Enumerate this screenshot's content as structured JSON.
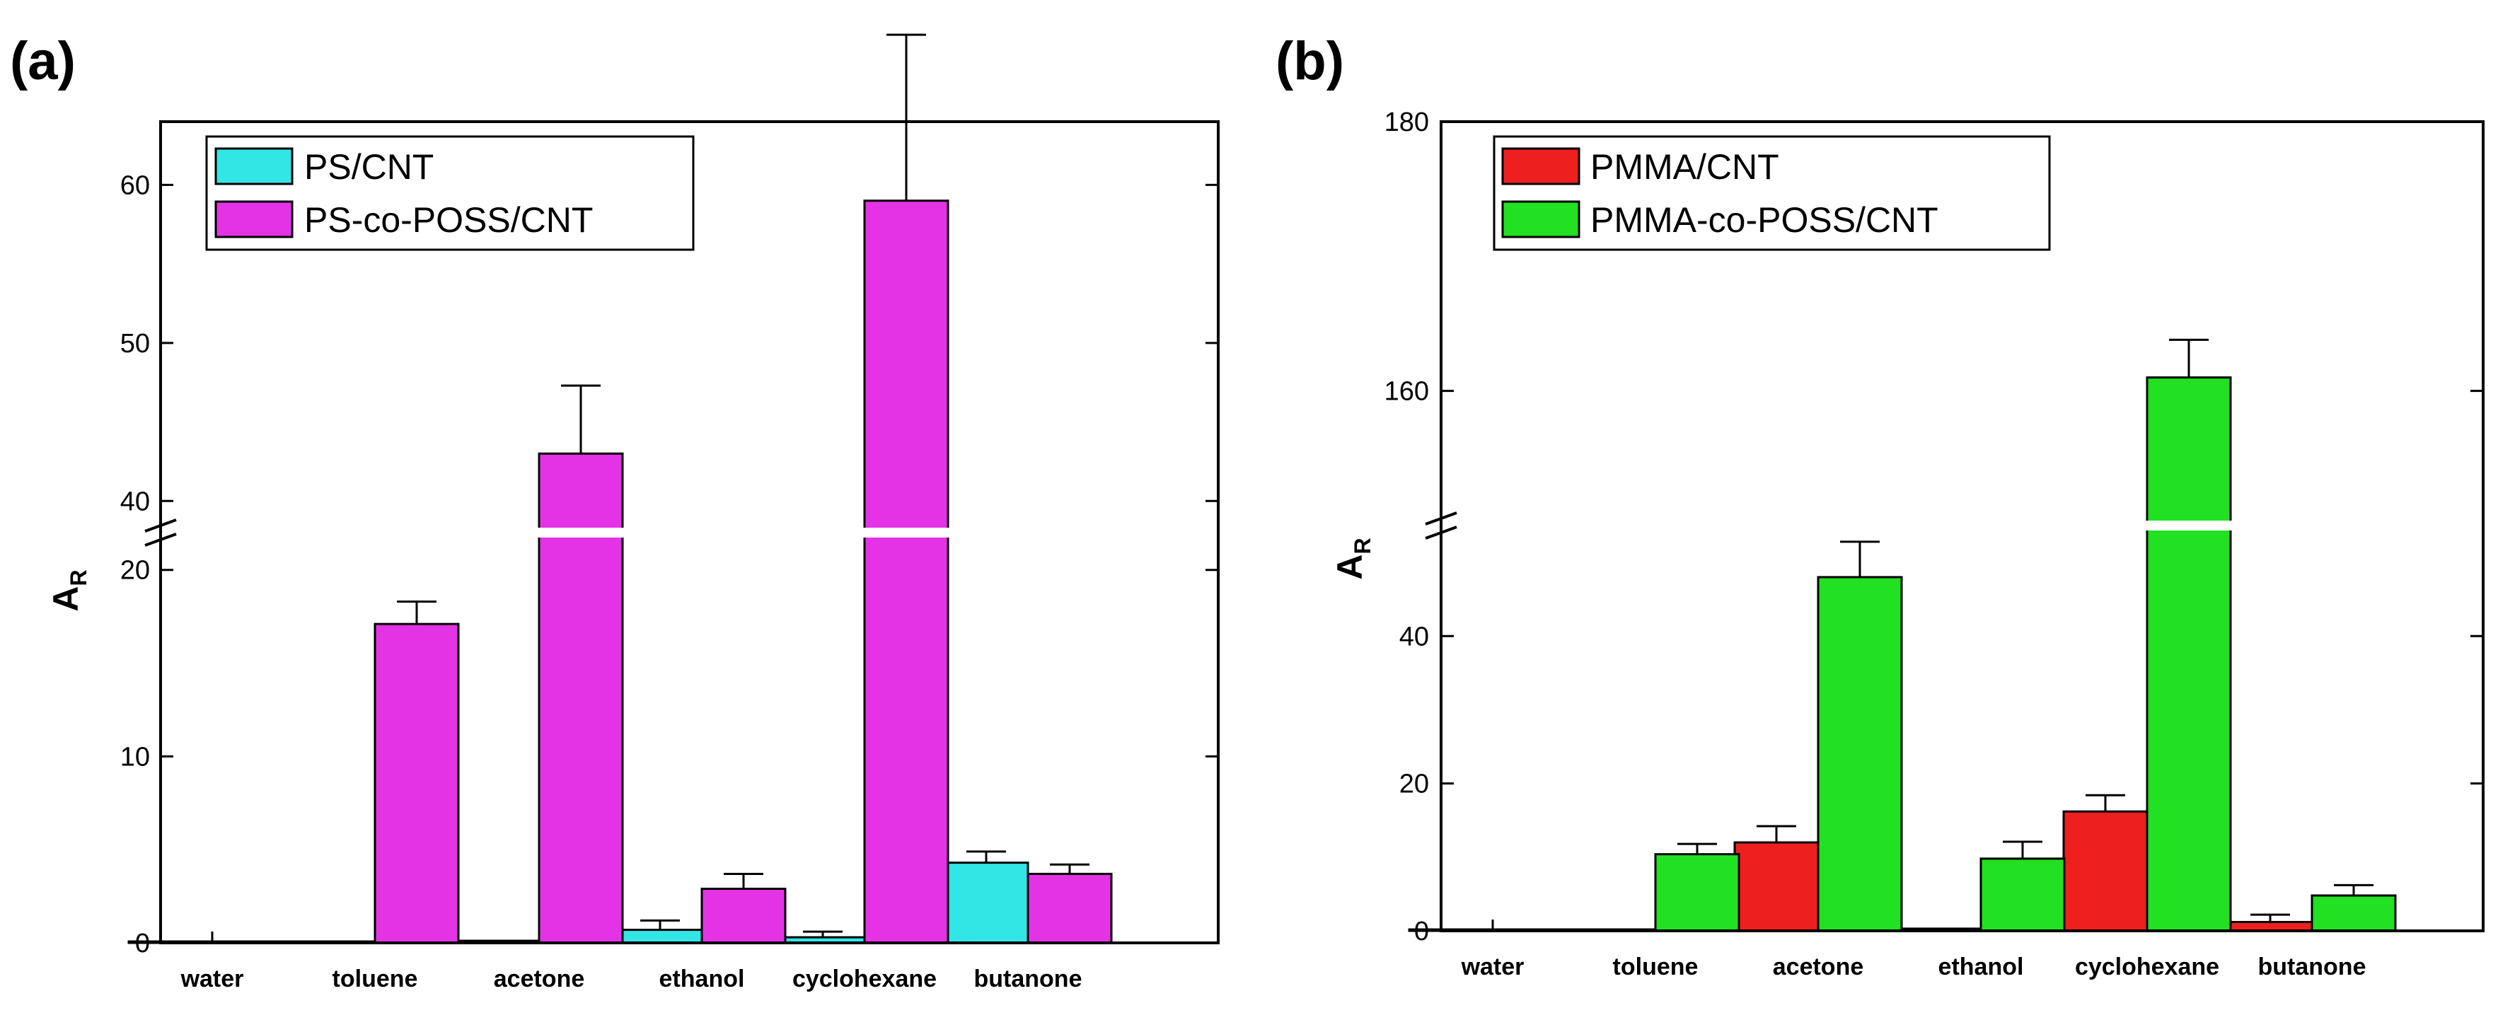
{
  "chart_data": [
    {
      "type": "bar",
      "panel_label": "(a)",
      "ylabel": "A",
      "ylabel_sub": "R",
      "categories": [
        "water",
        "toluene",
        "acetone",
        "ethanol",
        "cyclohexane",
        "butanone"
      ],
      "series": [
        {
          "name": "PS/CNT",
          "color": "#33e6e6",
          "values": [
            0,
            0,
            0.1,
            0.7,
            0.3,
            4.3
          ],
          "errors": [
            0,
            0,
            0,
            0.5,
            0.3,
            0.6
          ]
        },
        {
          "name": "PS-co-POSS/CNT",
          "color": "#e433e4",
          "values": [
            0,
            17.1,
            43.0,
            2.9,
            59.0,
            3.7
          ],
          "errors": [
            0,
            1.2,
            4.3,
            0.8,
            10.5,
            0.5
          ]
        }
      ],
      "axis_break": {
        "lower": [
          0,
          22
        ],
        "upper": [
          38,
          64
        ]
      },
      "yticks_lower": [
        0,
        10,
        20
      ],
      "yticks_upper": [
        40,
        50,
        60
      ],
      "legend": "top-left"
    },
    {
      "type": "bar",
      "panel_label": "(b)",
      "ylabel": "A",
      "ylabel_sub": "R",
      "categories": [
        "water",
        "toluene",
        "acetone",
        "ethanol",
        "cyclohexane",
        "butanone"
      ],
      "series": [
        {
          "name": "PMMA/CNT",
          "color": "#ee1f1f",
          "values": [
            0,
            0,
            12.0,
            0.3,
            16.2,
            1.2
          ],
          "errors": [
            0,
            0,
            2.2,
            0,
            2.2,
            1.0
          ]
        },
        {
          "name": "PMMA-co-POSS/CNT",
          "color": "#22e022",
          "values": [
            0,
            10.4,
            48.0,
            9.8,
            161.0,
            4.8
          ],
          "errors": [
            0,
            1.4,
            4.8,
            2.3,
            2.8,
            1.4
          ]
        }
      ],
      "axis_break": {
        "lower": [
          0,
          55
        ],
        "upper": [
          150,
          180
        ]
      },
      "yticks_lower": [
        0,
        20,
        40
      ],
      "yticks_upper": [
        160,
        180
      ],
      "legend": "top-left"
    }
  ]
}
